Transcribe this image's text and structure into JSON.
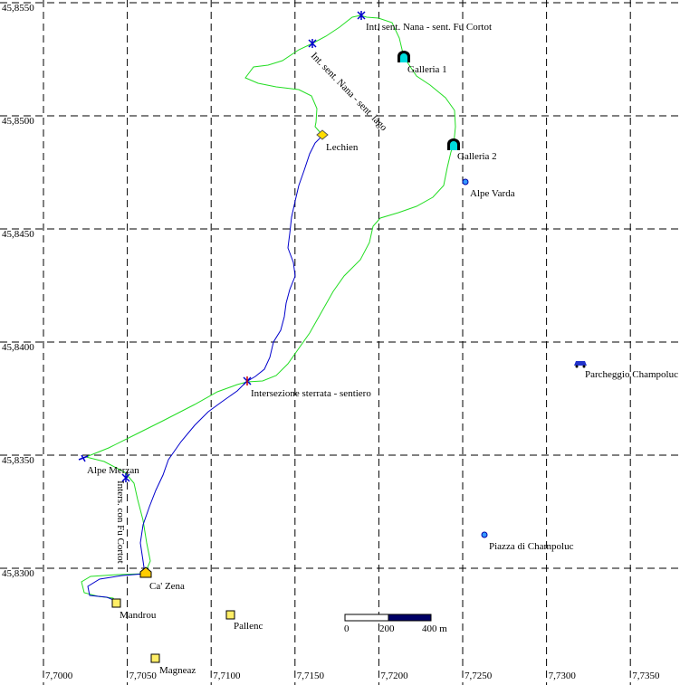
{
  "map": {
    "lat_labels": [
      "45,8550",
      "45,8500",
      "45,8450",
      "45,8400",
      "45,8350",
      "45,8300"
    ],
    "lon_labels": [
      "7,7000",
      "7,7050",
      "7,7100",
      "7,7150",
      "7,7200",
      "7,7250",
      "7,7300",
      "7,7350"
    ]
  },
  "waypoints": [
    {
      "name": "Int. sent. Nana - sent. Fu Cortot"
    },
    {
      "name": "Int. sent. Nana - sent. lago"
    },
    {
      "name": "Galleria 1"
    },
    {
      "name": "Lechien"
    },
    {
      "name": "Galleria 2"
    },
    {
      "name": "Alpe Varda"
    },
    {
      "name": "Parcheggio Champoluc"
    },
    {
      "name": "Intersezione sterrata - sentiero"
    },
    {
      "name": "Alpe Merzan"
    },
    {
      "name": "Inters. con Fu Cortot"
    },
    {
      "name": "Ca' Zena"
    },
    {
      "name": "Mandrou"
    },
    {
      "name": "Pallenc"
    },
    {
      "name": "Magneaz"
    },
    {
      "name": "Piazza di Champoluc"
    }
  ],
  "scale_bar": {
    "labels": [
      "0",
      "200",
      "400 m"
    ]
  }
}
